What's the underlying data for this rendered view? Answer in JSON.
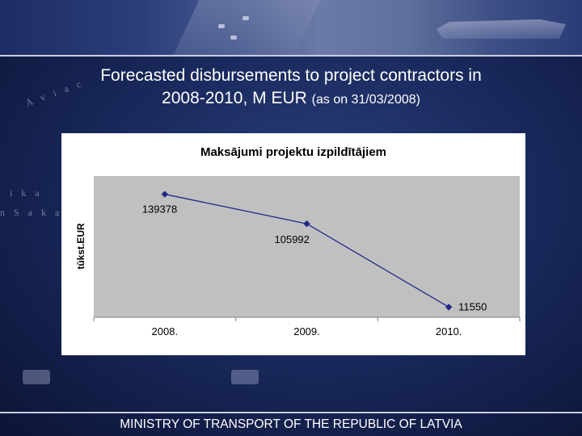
{
  "slide": {
    "title_main": "Forecasted disbursements to project contractors in",
    "title_line2": "2008-2010, M EUR",
    "title_small": "(as on 31/03/2008)",
    "footer": "MINISTRY OF TRANSPORT OF THE REPUBLIC OF LATVIA",
    "side_text": [
      "A v i a c",
      "i k a",
      "n  S a k a r i"
    ]
  },
  "colors": {
    "accent_line": "#1f2a8a",
    "plot_bg": "#c0c0c0",
    "background": "#1a2a5e"
  },
  "chart_data": {
    "type": "line",
    "title": "Maksājumi projektu izpildītājiem",
    "xlabel": "",
    "ylabel": "tūkst.EUR",
    "categories": [
      "2008.",
      "2009.",
      "2010."
    ],
    "series": [
      {
        "values": [
          139378,
          105992,
          11550
        ]
      }
    ],
    "data_labels": [
      "139378",
      "105992",
      "11550"
    ],
    "ylim": [
      0,
      160000
    ],
    "grid": false,
    "legend": "none"
  }
}
